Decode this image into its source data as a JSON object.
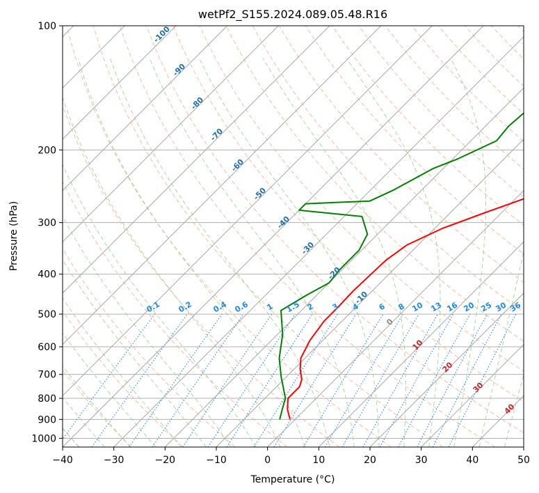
{
  "chart_data": {
    "type": "line",
    "title": "wetPf2_S155.2024.089.05.48.R16",
    "xlabel": "Temperature (°C)",
    "ylabel": "Pressure (hPa)",
    "xlim": [
      -40,
      50
    ],
    "ylim": [
      1050,
      100
    ],
    "y_scale": "log",
    "grid": true,
    "x_ticks": [
      -40,
      -30,
      -20,
      -10,
      0,
      10,
      20,
      30,
      40,
      50
    ],
    "x_tick_labels": [
      "−40",
      "−30",
      "−20",
      "−10",
      "0",
      "10",
      "20",
      "30",
      "40",
      "50"
    ],
    "y_ticks": [
      100,
      200,
      300,
      400,
      500,
      600,
      700,
      800,
      900,
      1000
    ],
    "y_tick_labels": [
      "100",
      "200",
      "300",
      "400",
      "500",
      "600",
      "700",
      "800",
      "900",
      "1000"
    ],
    "series": [
      {
        "kind": "temperature",
        "color": "#ff0000",
        "points": [
          [
            -1.0,
            900
          ],
          [
            -3.5,
            850
          ],
          [
            -5.5,
            800
          ],
          [
            -5.5,
            750
          ],
          [
            -6.5,
            720
          ],
          [
            -8.8,
            680
          ],
          [
            -10.8,
            640
          ],
          [
            -12.5,
            580
          ],
          [
            -13.5,
            520
          ],
          [
            -13.5,
            480
          ],
          [
            -13.7,
            440
          ],
          [
            -13.5,
            400
          ],
          [
            -13.3,
            370
          ],
          [
            -12.2,
            340
          ],
          [
            -8.5,
            310
          ],
          [
            -3.5,
            285
          ],
          [
            2.3,
            260
          ],
          [
            9.5,
            230
          ],
          [
            13.5,
            200
          ],
          [
            18.8,
            170
          ],
          [
            23.8,
            145
          ],
          [
            28.2,
            122
          ],
          [
            33.3,
            100
          ]
        ]
      },
      {
        "kind": "dewpoint",
        "color": "#008000",
        "points": [
          [
            -3.0,
            900
          ],
          [
            -4.5,
            850
          ],
          [
            -6.0,
            800
          ],
          [
            -11.0,
            710
          ],
          [
            -15.0,
            640
          ],
          [
            -19.0,
            560
          ],
          [
            -22.5,
            510
          ],
          [
            -24.0,
            490
          ],
          [
            -22.0,
            450
          ],
          [
            -20.0,
            420
          ],
          [
            -20.5,
            390
          ],
          [
            -20.5,
            350
          ],
          [
            -22.0,
            320
          ],
          [
            -26.5,
            290
          ],
          [
            -40.0,
            280
          ],
          [
            -40.0,
            270
          ],
          [
            -28.0,
            266
          ],
          [
            -25.5,
            250
          ],
          [
            -22.0,
            222
          ],
          [
            -19.0,
            210
          ],
          [
            -15.0,
            190
          ],
          [
            -15.5,
            175
          ],
          [
            -15.0,
            160
          ],
          [
            -11.5,
            130
          ],
          [
            -2.5,
            100
          ]
        ]
      }
    ],
    "dry_adiabats_c": [
      -100,
      -90,
      -80,
      -70,
      -60,
      -50,
      -40,
      -30,
      -20,
      -10,
      0,
      10,
      20,
      30,
      40
    ],
    "dry_adiabat_labels": [
      "-100",
      "-90",
      "-80",
      "-70",
      "-60",
      "-50",
      "-40",
      "-30",
      "-20",
      "-10"
    ],
    "moist_adiabat_labels": [
      "0",
      "10",
      "20",
      "30",
      "40"
    ],
    "mixing_ratios": [
      0.1,
      0.2,
      0.4,
      0.6,
      1,
      1.5,
      2,
      3,
      4,
      6,
      8,
      10,
      13,
      16,
      20,
      25,
      30,
      36
    ],
    "mixing_ratio_labels": [
      "0.1",
      "0.2",
      "0.4",
      "0.6",
      "1",
      "1.5",
      "2",
      "3",
      "4",
      "6",
      "8",
      "10",
      "13",
      "16",
      "20",
      "25",
      "30",
      "36"
    ]
  },
  "colors": {
    "dry_adiabat": "#f4a582",
    "moist_adiabat": "#9fd49f",
    "mixing_ratio": "#1e88e5",
    "isotherm": "#888888",
    "dry_label": "#1f6fb0",
    "moist_label": "#cc2222"
  }
}
